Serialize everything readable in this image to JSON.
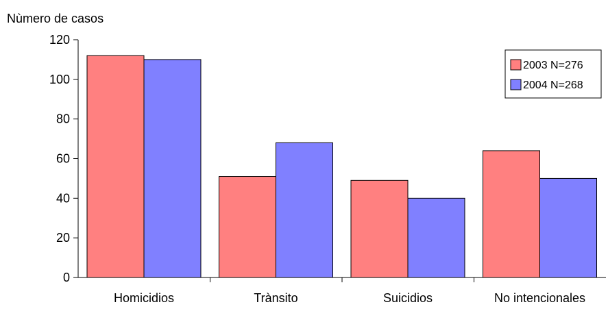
{
  "chart_data": {
    "type": "bar",
    "title": "",
    "xlabel": "",
    "ylabel": "Nùmero de casos",
    "categories": [
      "Homicidios",
      "Trànsito",
      "Suicidios",
      "No intencionales"
    ],
    "series": [
      {
        "name": "2003 N=276",
        "color": "#ff8080",
        "values": [
          112,
          51,
          49,
          64
        ]
      },
      {
        "name": "2004 N=268",
        "color": "#8080ff",
        "values": [
          110,
          68,
          40,
          50
        ]
      }
    ],
    "ylim": [
      0,
      120
    ],
    "yticks": [
      "0",
      "20",
      "40",
      "60",
      "80",
      "100",
      "120"
    ],
    "grid": false,
    "legend_position": "top-right"
  }
}
